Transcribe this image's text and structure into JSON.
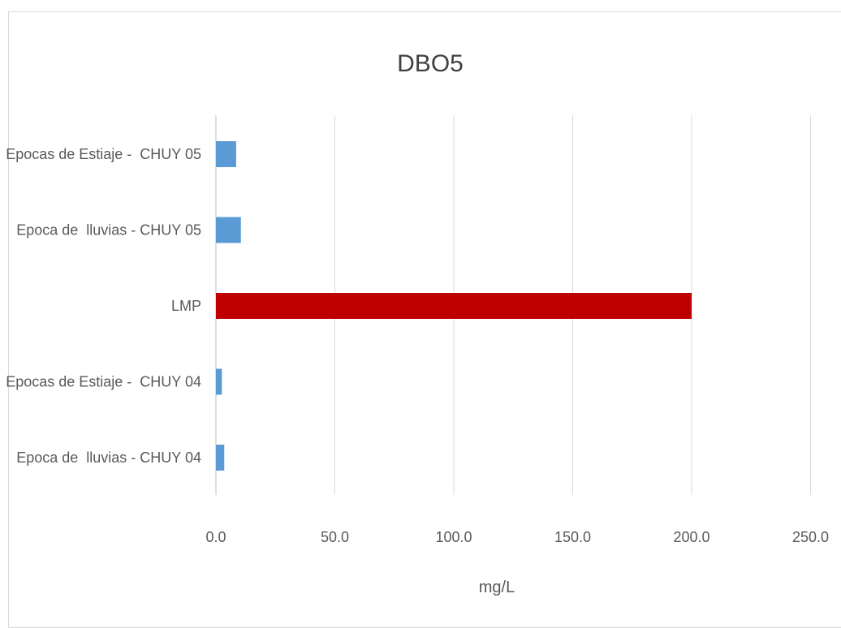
{
  "chart_data": {
    "type": "bar",
    "orientation": "horizontal",
    "title": "DBO5",
    "xlabel": "mg/L",
    "ylabel": "",
    "xlim": [
      0,
      250
    ],
    "ticks": [
      0,
      50,
      100,
      150,
      200,
      250
    ],
    "tick_labels": [
      "0.0",
      "50.0",
      "100.0",
      "150.0",
      "200.0",
      "250.0"
    ],
    "grid": true,
    "legend": "none",
    "categories": [
      "Epocas de Estiaje -  CHUY 05",
      "Epoca de  lluvias - CHUY 05",
      "LMP",
      "Epocas de Estiaje -  CHUY 04",
      "Epoca de  lluvias - CHUY 04"
    ],
    "values": [
      8.5,
      10.5,
      200,
      2.5,
      3.5
    ],
    "colors": [
      "#5b9bd5",
      "#5b9bd5",
      "#c00000",
      "#5b9bd5",
      "#5b9bd5"
    ]
  }
}
